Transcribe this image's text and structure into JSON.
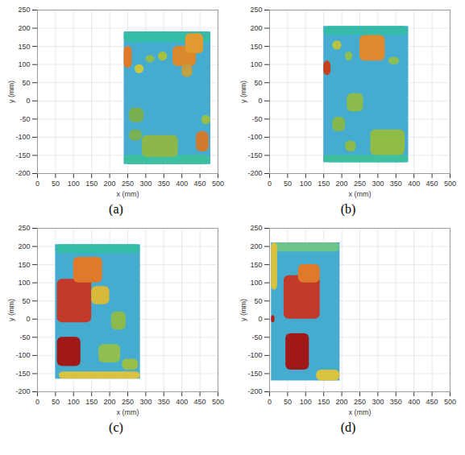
{
  "chart_data": [
    {
      "type": "surface",
      "caption": "(a)",
      "x_label": "x (mm)",
      "y_label": "y (mm)",
      "xlim": [
        0,
        500
      ],
      "ylim": [
        -200,
        250
      ],
      "xticks": [
        0,
        50,
        100,
        150,
        200,
        250,
        300,
        350,
        400,
        450,
        500
      ],
      "yticks": [
        -200,
        -150,
        -100,
        -50,
        0,
        50,
        100,
        150,
        200,
        250
      ],
      "grid": true,
      "surface": {
        "x": [
          240,
          480
        ],
        "y": [
          -175,
          190
        ],
        "color": "#45acd0"
      },
      "features": [
        {
          "x": [
            240,
            480
          ],
          "y": [
            160,
            190
          ],
          "color": "#34bca8"
        },
        {
          "x": [
            240,
            480
          ],
          "y": [
            -175,
            -150
          ],
          "color": "#3cc0a0"
        },
        {
          "x": [
            240,
            262
          ],
          "y": [
            90,
            150
          ],
          "color": "#e07a2a"
        },
        {
          "x": [
            270,
            295
          ],
          "y": [
            75,
            100
          ],
          "color": "#c9c840"
        },
        {
          "x": [
            300,
            325
          ],
          "y": [
            105,
            125
          ],
          "color": "#8fbf50"
        },
        {
          "x": [
            335,
            360
          ],
          "y": [
            110,
            135
          ],
          "color": "#a8c040"
        },
        {
          "x": [
            375,
            440
          ],
          "y": [
            95,
            150
          ],
          "color": "#d9882e"
        },
        {
          "x": [
            410,
            460
          ],
          "y": [
            130,
            185
          ],
          "color": "#e09a30"
        },
        {
          "x": [
            400,
            430
          ],
          "y": [
            65,
            100
          ],
          "color": "#c0a040"
        },
        {
          "x": [
            255,
            295
          ],
          "y": [
            -60,
            -20
          ],
          "color": "#78b050"
        },
        {
          "x": [
            255,
            290
          ],
          "y": [
            -110,
            -80
          ],
          "color": "#7ab055"
        },
        {
          "x": [
            290,
            390
          ],
          "y": [
            -155,
            -95
          ],
          "color": "#8cb84a"
        },
        {
          "x": [
            440,
            475
          ],
          "y": [
            -140,
            -85
          ],
          "color": "#d07a30"
        },
        {
          "x": [
            455,
            480
          ],
          "y": [
            -65,
            -40
          ],
          "color": "#9abf48"
        }
      ]
    },
    {
      "type": "surface",
      "caption": "(b)",
      "x_label": "x (mm)",
      "y_label": "y (mm)",
      "xlim": [
        0,
        500
      ],
      "ylim": [
        -200,
        250
      ],
      "xticks": [
        0,
        50,
        100,
        150,
        200,
        250,
        300,
        350,
        400,
        450,
        500
      ],
      "yticks": [
        -200,
        -150,
        -100,
        -50,
        0,
        50,
        100,
        150,
        200,
        250
      ],
      "grid": true,
      "surface": {
        "x": [
          150,
          385
        ],
        "y": [
          -170,
          205
        ],
        "color": "#45acd0"
      },
      "features": [
        {
          "x": [
            150,
            385
          ],
          "y": [
            180,
            205
          ],
          "color": "#34bca8"
        },
        {
          "x": [
            150,
            385
          ],
          "y": [
            -170,
            -150
          ],
          "color": "#3cc0a0"
        },
        {
          "x": [
            150,
            170
          ],
          "y": [
            70,
            110
          ],
          "color": "#c84020"
        },
        {
          "x": [
            250,
            320
          ],
          "y": [
            110,
            180
          ],
          "color": "#e08a30"
        },
        {
          "x": [
            175,
            200
          ],
          "y": [
            140,
            165
          ],
          "color": "#b8c440"
        },
        {
          "x": [
            210,
            230
          ],
          "y": [
            110,
            135
          ],
          "color": "#8fbf50"
        },
        {
          "x": [
            330,
            360
          ],
          "y": [
            100,
            120
          ],
          "color": "#8fbf50"
        },
        {
          "x": [
            215,
            260
          ],
          "y": [
            -30,
            20
          ],
          "color": "#8bbb4a"
        },
        {
          "x": [
            175,
            210
          ],
          "y": [
            -85,
            -45
          ],
          "color": "#84b84c"
        },
        {
          "x": [
            280,
            375
          ],
          "y": [
            -150,
            -80
          ],
          "color": "#90bb45"
        },
        {
          "x": [
            210,
            240
          ],
          "y": [
            -140,
            -110
          ],
          "color": "#8bbb4a"
        }
      ]
    },
    {
      "type": "surface",
      "caption": "(c)",
      "x_label": "x (mm)",
      "y_label": "y (mm)",
      "xlim": [
        0,
        500
      ],
      "ylim": [
        -200,
        250
      ],
      "xticks": [
        0,
        50,
        100,
        150,
        200,
        250,
        300,
        350,
        400,
        450,
        500
      ],
      "yticks": [
        -200,
        -150,
        -100,
        -50,
        0,
        50,
        100,
        150,
        200,
        250
      ],
      "grid": true,
      "surface": {
        "x": [
          50,
          285
        ],
        "y": [
          -165,
          205
        ],
        "color": "#45acd0"
      },
      "features": [
        {
          "x": [
            50,
            285
          ],
          "y": [
            180,
            205
          ],
          "color": "#34bca8"
        },
        {
          "x": [
            60,
            285
          ],
          "y": [
            -165,
            -145
          ],
          "color": "#d9c240"
        },
        {
          "x": [
            55,
            150
          ],
          "y": [
            -10,
            110
          ],
          "color": "#c0392b"
        },
        {
          "x": [
            100,
            180
          ],
          "y": [
            100,
            170
          ],
          "color": "#e07a2a"
        },
        {
          "x": [
            150,
            200
          ],
          "y": [
            40,
            90
          ],
          "color": "#d6b83a"
        },
        {
          "x": [
            55,
            120
          ],
          "y": [
            -130,
            -50
          ],
          "color": "#a01818"
        },
        {
          "x": [
            205,
            245
          ],
          "y": [
            -30,
            20
          ],
          "color": "#8bbb4a"
        },
        {
          "x": [
            170,
            230
          ],
          "y": [
            -120,
            -70
          ],
          "color": "#8fbf50"
        },
        {
          "x": [
            235,
            280
          ],
          "y": [
            -140,
            -110
          ],
          "color": "#9abf48"
        }
      ]
    },
    {
      "type": "surface",
      "caption": "(d)",
      "x_label": "x (mm)",
      "y_label": "y (mm)",
      "xlim": [
        0,
        500
      ],
      "ylim": [
        -200,
        250
      ],
      "xticks": [
        0,
        50,
        100,
        150,
        200,
        250,
        300,
        350,
        400,
        450,
        500
      ],
      "yticks": [
        -200,
        -150,
        -100,
        -50,
        0,
        50,
        100,
        150,
        200,
        250
      ],
      "grid": true,
      "surface": {
        "x": [
          5,
          195
        ],
        "y": [
          -170,
          210
        ],
        "color": "#45acd0"
      },
      "features": [
        {
          "x": [
            5,
            195
          ],
          "y": [
            185,
            210
          ],
          "color": "#6cc48a"
        },
        {
          "x": [
            5,
            22
          ],
          "y": [
            80,
            210
          ],
          "color": "#d9c240"
        },
        {
          "x": [
            130,
            195
          ],
          "y": [
            -170,
            -140
          ],
          "color": "#d9c240"
        },
        {
          "x": [
            40,
            140
          ],
          "y": [
            0,
            120
          ],
          "color": "#c0392b"
        },
        {
          "x": [
            80,
            140
          ],
          "y": [
            100,
            150
          ],
          "color": "#e07a2a"
        },
        {
          "x": [
            45,
            110
          ],
          "y": [
            -140,
            -40
          ],
          "color": "#a01818"
        },
        {
          "x": [
            5,
            15
          ],
          "y": [
            -10,
            10
          ],
          "color": "#b02020"
        }
      ]
    }
  ]
}
